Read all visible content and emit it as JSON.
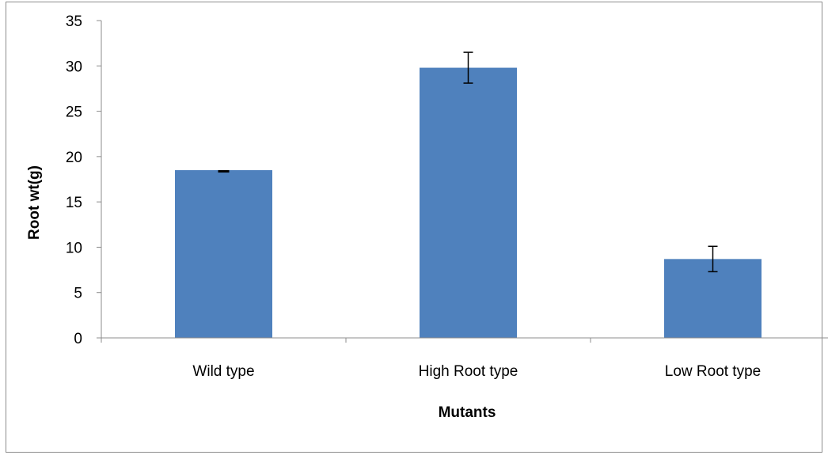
{
  "chart_data": {
    "type": "bar",
    "title": "",
    "xlabel": "Mutants",
    "ylabel": "Root wt(g)",
    "ylim": [
      0,
      35
    ],
    "yticks": [
      0,
      5,
      10,
      15,
      20,
      25,
      30,
      35
    ],
    "grid": false,
    "legend": "none",
    "categories": [
      "Wild type",
      "High Root type",
      "Low Root type"
    ],
    "values": [
      18.5,
      29.8,
      8.7
    ],
    "error_low": [
      18.3,
      28.1,
      7.3
    ],
    "error_high": [
      18.5,
      31.5,
      10.1
    ],
    "colors": {
      "bar": "#4f81bd",
      "axis": "#8c8c8c",
      "error": "#000000"
    }
  }
}
